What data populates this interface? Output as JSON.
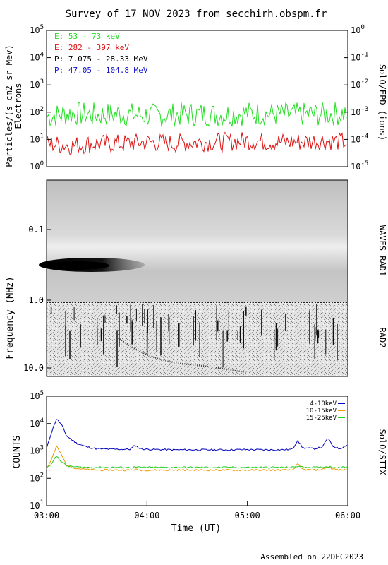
{
  "title": "Survey of 17 NOV 2023 from secchirh.obspm.fr",
  "footer": "Assembled on 22DEC2023",
  "chart_data": [
    {
      "type": "line",
      "panel": "particles",
      "ylabel": "Particles/(s cm2 sr Mev)",
      "ylabel2": "Electrons",
      "right_label": "SolO/EPD (ions)",
      "yscale": "log",
      "ylim": [
        1,
        100000
      ],
      "y_ticks": [
        "10^0",
        "10^1",
        "10^2",
        "10^3",
        "10^4",
        "10^5"
      ],
      "right_ylim": [
        1e-05,
        1
      ],
      "right_ticks": [
        "10^-5",
        "10^-4",
        "10^-3",
        "10^-2",
        "10^-1",
        "10^0"
      ],
      "xlim": [
        "03:00",
        "06:00"
      ],
      "legend_placement": "top-left",
      "series": [
        {
          "name": "E: 53 - 73 keV",
          "color": "#22dd22",
          "x": [
            "03:00",
            "03:15",
            "03:30",
            "03:45",
            "04:00",
            "04:15",
            "04:30",
            "04:45",
            "05:00",
            "05:15",
            "05:30",
            "05:45",
            "06:00"
          ],
          "values": [
            70,
            90,
            80,
            85,
            75,
            80,
            85,
            80,
            90,
            85,
            80,
            85,
            90
          ]
        },
        {
          "name": "E: 282 - 397 keV",
          "color": "#dd1111",
          "x": [
            "03:00",
            "03:15",
            "03:30",
            "03:45",
            "04:00",
            "04:15",
            "04:30",
            "04:45",
            "05:00",
            "05:15",
            "05:30",
            "05:45",
            "06:00"
          ],
          "values": [
            7,
            6,
            7,
            7,
            8,
            7,
            8,
            8,
            9,
            8,
            8,
            9,
            8
          ]
        },
        {
          "name": "P: 7.075 - 28.33 MeV",
          "color": "#000000",
          "x": [],
          "values": []
        },
        {
          "name": "P: 47.05 - 104.8 MeV",
          "color": "#1111cc",
          "x": [],
          "values": []
        }
      ]
    },
    {
      "type": "heatmap",
      "panel": "radio",
      "ylabel": "Frequency (MHz)",
      "right_label_top": "WAVES RAD1",
      "right_label_bottom": "RAD2",
      "yscale": "log",
      "y_ticks": [
        "0.1",
        "1.0",
        "10.0"
      ],
      "ylim_reversed": [
        0.02,
        13
      ],
      "xlim": [
        "03:00",
        "06:00"
      ],
      "features": [
        {
          "name": "low-frequency enhancement",
          "time_start": "03:00",
          "time_end": "04:05",
          "freq_mhz": 0.3
        },
        {
          "name": "fast-drift burst",
          "time_start": "03:45",
          "time_end": "04:50",
          "freq_start_mhz": 4,
          "freq_end_mhz": 12
        }
      ]
    },
    {
      "type": "line",
      "panel": "stix",
      "ylabel": "COUNTS",
      "right_label": "SolO/STIX",
      "yscale": "log",
      "ylim": [
        10,
        100000
      ],
      "y_ticks": [
        "10^1",
        "10^2",
        "10^3",
        "10^4",
        "10^5"
      ],
      "xlabel": "Time (UT)",
      "x_ticks": [
        "03:00",
        "04:00",
        "05:00",
        "06:00"
      ],
      "xlim": [
        "03:00",
        "06:00"
      ],
      "legend_placement": "top-right",
      "x": [
        "03:00",
        "03:03",
        "03:06",
        "03:09",
        "03:12",
        "03:18",
        "03:24",
        "03:30",
        "03:40",
        "03:50",
        "03:53",
        "03:56",
        "04:00",
        "04:15",
        "04:30",
        "04:45",
        "05:00",
        "05:10",
        "05:20",
        "05:27",
        "05:30",
        "05:33",
        "05:40",
        "05:45",
        "05:48",
        "05:51",
        "05:55",
        "06:00"
      ],
      "series": [
        {
          "name": "4-10keV",
          "color": "#0000bb",
          "values": [
            1200,
            5000,
            15000,
            9000,
            3500,
            1900,
            1400,
            1200,
            1150,
            1150,
            1600,
            1200,
            1150,
            1100,
            1100,
            1100,
            1120,
            1100,
            1100,
            1150,
            2500,
            1300,
            1200,
            1400,
            3000,
            1500,
            1200,
            1700
          ]
        },
        {
          "name": "10-15keV",
          "color": "#ee9900",
          "values": [
            220,
            500,
            1500,
            700,
            300,
            230,
            210,
            200,
            200,
            200,
            210,
            200,
            200,
            200,
            200,
            200,
            200,
            200,
            200,
            200,
            330,
            210,
            200,
            210,
            270,
            220,
            200,
            210
          ]
        },
        {
          "name": "15-25keV",
          "color": "#22cc22",
          "values": [
            250,
            350,
            650,
            400,
            280,
            260,
            250,
            250,
            250,
            250,
            255,
            250,
            250,
            250,
            250,
            250,
            250,
            250,
            250,
            250,
            280,
            255,
            250,
            255,
            270,
            255,
            250,
            255
          ]
        }
      ]
    }
  ]
}
